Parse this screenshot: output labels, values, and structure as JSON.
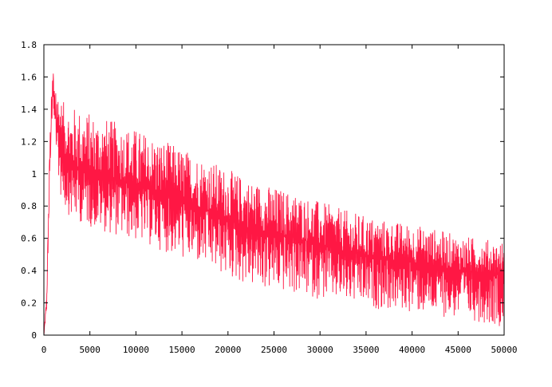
{
  "chart_data": {
    "type": "line",
    "title": "",
    "xlabel": "",
    "ylabel": "",
    "xlim": [
      0,
      50000
    ],
    "ylim": [
      0,
      1.8
    ],
    "x_ticks": [
      0,
      5000,
      10000,
      15000,
      20000,
      25000,
      30000,
      35000,
      40000,
      45000,
      50000
    ],
    "x_tick_labels": [
      "0",
      "5000",
      "10000",
      "15000",
      "20000",
      "25000",
      "30000",
      "35000",
      "40000",
      "45000",
      "50000"
    ],
    "y_ticks": [
      0,
      0.2,
      0.4,
      0.6,
      0.8,
      1,
      1.2,
      1.4,
      1.6,
      1.8
    ],
    "y_tick_labels": [
      "0",
      "0.2",
      "0.4",
      "0.6",
      "0.8",
      "1",
      "1.2",
      "1.4",
      "1.6",
      "1.8"
    ],
    "grid": false,
    "legend": "none",
    "series": [
      {
        "color": "#ff1744",
        "style": "noisy-band",
        "x": [
          0,
          300,
          700,
          1000,
          1300,
          2000,
          3000,
          5000,
          7500,
          10000,
          12500,
          15000,
          17500,
          20000,
          22500,
          25000,
          27500,
          30000,
          32500,
          35000,
          37500,
          40000,
          42500,
          45000,
          47500,
          50000
        ],
        "mean": [
          0.0,
          0.2,
          1.2,
          1.55,
          1.35,
          1.15,
          1.05,
          1.0,
          0.97,
          0.93,
          0.88,
          0.83,
          0.78,
          0.72,
          0.66,
          0.63,
          0.6,
          0.56,
          0.52,
          0.49,
          0.47,
          0.45,
          0.43,
          0.4,
          0.39,
          0.38
        ],
        "low": [
          0.0,
          0.1,
          0.9,
          1.3,
          1.0,
          0.8,
          0.72,
          0.67,
          0.62,
          0.58,
          0.53,
          0.47,
          0.42,
          0.35,
          0.3,
          0.27,
          0.25,
          0.22,
          0.2,
          0.17,
          0.15,
          0.14,
          0.12,
          0.1,
          0.08,
          0.05
        ],
        "high": [
          0.0,
          0.3,
          1.45,
          1.7,
          1.55,
          1.45,
          1.42,
          1.38,
          1.33,
          1.28,
          1.22,
          1.16,
          1.1,
          1.03,
          0.96,
          0.92,
          0.88,
          0.83,
          0.78,
          0.74,
          0.71,
          0.69,
          0.66,
          0.62,
          0.6,
          0.58
        ]
      }
    ]
  }
}
